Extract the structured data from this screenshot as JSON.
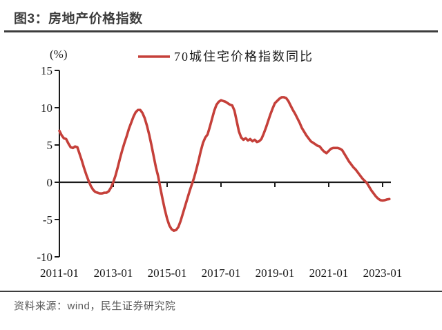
{
  "page": {
    "title": "图3：房地产价格指数",
    "source": "资料来源：wind，民生证券研究院"
  },
  "colors": {
    "series_red": "#c5403a",
    "rule_dark": "#3d3d3d",
    "axis_black": "#1a1a1a",
    "source_gray": "#595959"
  },
  "chart_data": {
    "type": "line",
    "title": "房地产价格指数",
    "unit_label": "(%)",
    "legend_position": "top-center",
    "grid": false,
    "x_axis": {
      "start": "2011-01",
      "end": "2023-04",
      "interval": "monthly",
      "tick_every_months": 24,
      "tick_labels": [
        "2011-01",
        "2013-01",
        "2015-01",
        "2017-01",
        "2019-01",
        "2021-01",
        "2023-01"
      ]
    },
    "y_axis": {
      "ticks": [
        15,
        10,
        5,
        0,
        -5,
        -10
      ],
      "range": [
        -10,
        15
      ]
    },
    "series": [
      {
        "name": "70城住宅价格指数同比",
        "color": "#c5403a",
        "unit": "%",
        "x_start": "2011-01",
        "values": [
          6.9,
          6.3,
          5.9,
          5.8,
          5.2,
          4.7,
          4.6,
          4.8,
          4.7,
          3.8,
          2.9,
          1.9,
          1.0,
          0.2,
          -0.5,
          -1.0,
          -1.3,
          -1.4,
          -1.5,
          -1.5,
          -1.4,
          -1.4,
          -1.2,
          -0.7,
          0.0,
          0.9,
          2.0,
          3.2,
          4.3,
          5.3,
          6.2,
          7.2,
          8.0,
          8.8,
          9.4,
          9.7,
          9.7,
          9.3,
          8.6,
          7.6,
          6.4,
          5.0,
          3.5,
          2.0,
          0.8,
          -0.8,
          -2.3,
          -3.7,
          -4.9,
          -5.8,
          -6.3,
          -6.5,
          -6.4,
          -6.0,
          -5.2,
          -4.2,
          -3.2,
          -2.2,
          -1.2,
          -0.3,
          0.6,
          1.7,
          2.9,
          4.2,
          5.3,
          6.0,
          6.4,
          7.4,
          8.5,
          9.6,
          10.4,
          10.8,
          11.0,
          10.9,
          10.8,
          10.6,
          10.4,
          10.3,
          9.6,
          8.2,
          6.8,
          6.0,
          5.7,
          5.9,
          5.6,
          5.8,
          5.5,
          5.7,
          5.4,
          5.5,
          5.8,
          6.5,
          7.3,
          8.2,
          9.1,
          9.9,
          10.6,
          10.9,
          11.2,
          11.4,
          11.4,
          11.3,
          10.9,
          10.3,
          9.7,
          9.2,
          8.6,
          8.0,
          7.3,
          6.8,
          6.3,
          5.9,
          5.5,
          5.3,
          5.1,
          4.9,
          4.8,
          4.4,
          4.1,
          3.9,
          4.2,
          4.5,
          4.6,
          4.6,
          4.6,
          4.5,
          4.3,
          3.8,
          3.3,
          2.8,
          2.4,
          2.0,
          1.7,
          1.3,
          0.9,
          0.5,
          0.2,
          -0.1,
          -0.6,
          -1.1,
          -1.5,
          -1.9,
          -2.2,
          -2.4,
          -2.45,
          -2.4,
          -2.3,
          -2.25
        ]
      }
    ]
  }
}
